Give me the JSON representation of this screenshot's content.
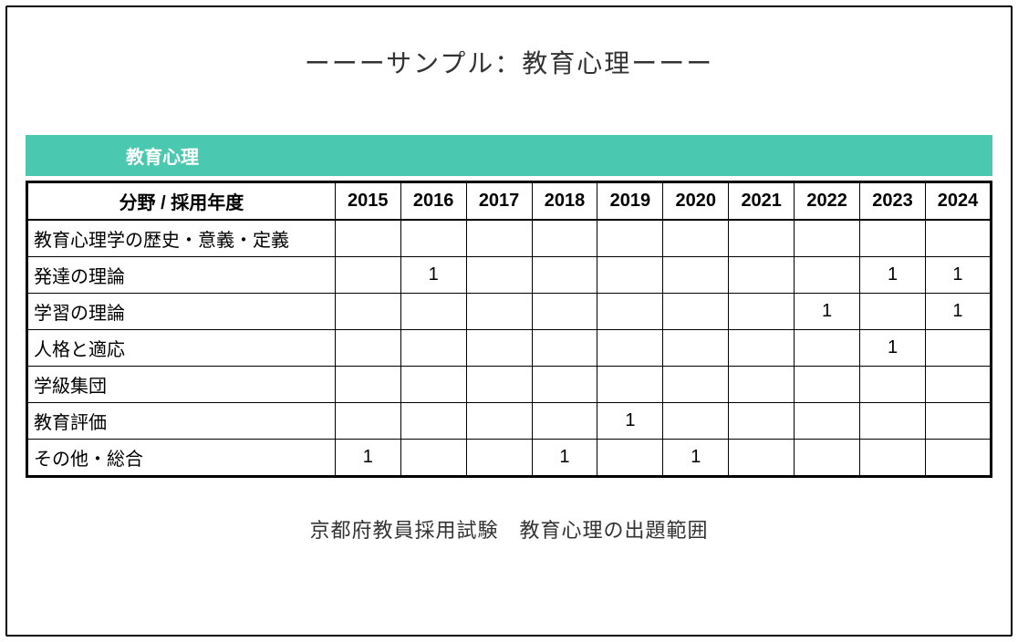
{
  "title": "ーーーサンプル：教育心理ーーー",
  "section_header": "教育心理",
  "caption": "京都府教員採用試験　教育心理の出題範囲",
  "table": {
    "header_label": "分野 / 採用年度",
    "years": [
      "2015",
      "2016",
      "2017",
      "2018",
      "2019",
      "2020",
      "2021",
      "2022",
      "2023",
      "2024"
    ],
    "rows": [
      {
        "label": "教育心理学の歴史・意義・定義",
        "values": [
          "",
          "",
          "",
          "",
          "",
          "",
          "",
          "",
          "",
          ""
        ]
      },
      {
        "label": "発達の理論",
        "values": [
          "",
          "1",
          "",
          "",
          "",
          "",
          "",
          "",
          "1",
          "1"
        ]
      },
      {
        "label": "学習の理論",
        "values": [
          "",
          "",
          "",
          "",
          "",
          "",
          "",
          "1",
          "",
          "1"
        ]
      },
      {
        "label": "人格と適応",
        "values": [
          "",
          "",
          "",
          "",
          "",
          "",
          "",
          "",
          "1",
          ""
        ]
      },
      {
        "label": "学級集団",
        "values": [
          "",
          "",
          "",
          "",
          "",
          "",
          "",
          "",
          "",
          ""
        ]
      },
      {
        "label": "教育評価",
        "values": [
          "",
          "",
          "",
          "",
          "1",
          "",
          "",
          "",
          "",
          ""
        ]
      },
      {
        "label": "その他・総合",
        "values": [
          "1",
          "",
          "",
          "1",
          "",
          "1",
          "",
          "",
          "",
          ""
        ]
      }
    ]
  },
  "style": {
    "header_bg_color": "#4bc9b0",
    "header_text_color": "#ffffff",
    "border_color": "#000000",
    "background_color": "#ffffff",
    "title_fontsize": 28,
    "section_header_fontsize": 20,
    "table_fontsize": 20,
    "caption_fontsize": 22
  }
}
